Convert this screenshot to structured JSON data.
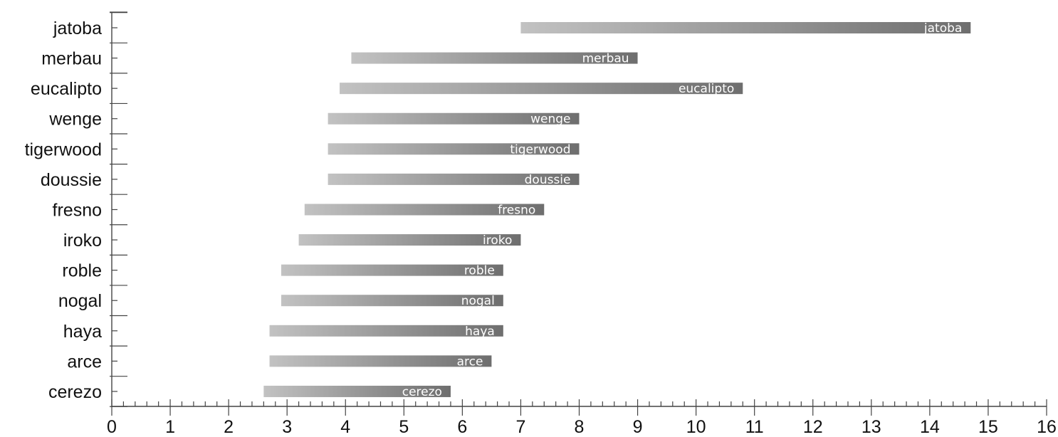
{
  "chart_data": {
    "type": "bar",
    "orientation": "horizontal-range",
    "categories": [
      "jatoba",
      "merbau",
      "eucalipto",
      "wenge",
      "tigerwood",
      "doussie",
      "fresno",
      "iroko",
      "roble",
      "nogal",
      "haya",
      "arce",
      "cerezo"
    ],
    "ranges": [
      {
        "name": "jatoba",
        "start": 7.0,
        "end": 14.7
      },
      {
        "name": "merbau",
        "start": 4.1,
        "end": 9.0
      },
      {
        "name": "eucalipto",
        "start": 3.9,
        "end": 10.8
      },
      {
        "name": "wenge",
        "start": 3.7,
        "end": 8.0
      },
      {
        "name": "tigerwood",
        "start": 3.7,
        "end": 8.0
      },
      {
        "name": "doussie",
        "start": 3.7,
        "end": 8.0
      },
      {
        "name": "fresno",
        "start": 3.3,
        "end": 7.4
      },
      {
        "name": "iroko",
        "start": 3.2,
        "end": 7.0
      },
      {
        "name": "roble",
        "start": 2.9,
        "end": 6.7
      },
      {
        "name": "nogal",
        "start": 2.9,
        "end": 6.7
      },
      {
        "name": "haya",
        "start": 2.7,
        "end": 6.7
      },
      {
        "name": "arce",
        "start": 2.7,
        "end": 6.5
      },
      {
        "name": "cerezo",
        "start": 2.6,
        "end": 5.8
      }
    ],
    "xlim": [
      0,
      16
    ],
    "x_ticks": [
      "0",
      "1",
      "2",
      "3",
      "4",
      "5",
      "6",
      "7",
      "8",
      "9",
      "10",
      "11",
      "12",
      "13",
      "14",
      "15",
      "16"
    ],
    "minor_ticks_per_unit": 5,
    "title": "",
    "xlabel": "",
    "ylabel": "",
    "grid": false,
    "legend": "none",
    "bar_gradient": [
      "#c2c2c2",
      "#6e6e6e"
    ]
  }
}
